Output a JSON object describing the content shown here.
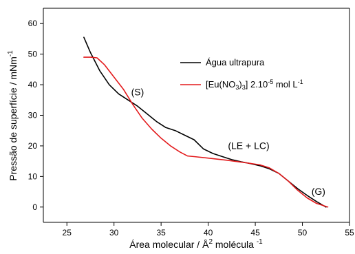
{
  "chart_data": {
    "type": "line",
    "xlabel": "Área molecular / Å² molécula ⁻¹",
    "ylabel": "Pressão de superfície / mNm⁻¹",
    "xlim": [
      22.5,
      55
    ],
    "ylim": [
      -5,
      65
    ],
    "xticks": [
      25,
      30,
      35,
      40,
      45,
      50,
      55
    ],
    "yticks": [
      0,
      10,
      20,
      30,
      40,
      50,
      60
    ],
    "grid": false,
    "legend_position": "top-right",
    "series": [
      {
        "name": "Água ultrapura",
        "color": "#000000",
        "x": [
          26.8,
          27.5,
          28.5,
          29.5,
          30.5,
          31.5,
          32.5,
          33.5,
          34.5,
          35.5,
          36.5,
          37.5,
          38.5,
          39.5,
          40.5,
          41.5,
          42.5,
          43.5,
          44.5,
          45.5,
          46.5,
          47.5,
          48.5,
          49.5,
          50.5,
          51.5,
          52.5
        ],
        "y": [
          55.5,
          50.5,
          44.5,
          40.0,
          37.0,
          35.0,
          33.0,
          30.5,
          28.0,
          26.0,
          25.0,
          23.5,
          22.0,
          19.0,
          17.5,
          16.5,
          15.5,
          14.8,
          14.2,
          13.5,
          12.5,
          11.0,
          8.5,
          6.0,
          3.8,
          1.8,
          0.0
        ]
      },
      {
        "name": "[Eu(NO₃)₃] 2.10⁻⁵ mol L⁻¹",
        "color": "#e31a1c",
        "x": [
          26.8,
          27.5,
          28.2,
          29.0,
          30.0,
          31.0,
          32.0,
          33.0,
          34.0,
          35.0,
          36.0,
          37.0,
          37.8,
          38.5,
          40.0,
          42.0,
          44.0,
          45.5,
          46.5,
          47.5,
          48.5,
          49.5,
          50.5,
          51.5,
          52.7
        ],
        "y": [
          49.0,
          49.0,
          48.8,
          46.5,
          42.5,
          38.5,
          33.5,
          29.0,
          25.5,
          22.5,
          20.0,
          18.0,
          16.7,
          16.5,
          16.0,
          15.3,
          14.5,
          13.8,
          12.8,
          11.0,
          8.5,
          5.5,
          3.0,
          1.2,
          0.0
        ]
      }
    ],
    "annotations": [
      {
        "text": "(S)",
        "x": 32.5,
        "y": 36.5
      },
      {
        "text": "(LE + LC)",
        "x": 44.3,
        "y": 19.0
      },
      {
        "text": "(G)",
        "x": 51.7,
        "y": 4.0
      }
    ]
  },
  "legend": {
    "item1": {
      "label": "Água ultrapura",
      "color": "#000000"
    },
    "item2": {
      "label_parts": [
        "[Eu(NO",
        "3",
        ")",
        "3",
        "] 2.10",
        "-5",
        " mol L",
        "-1"
      ],
      "color": "#e31a1c"
    }
  },
  "axis_titles": {
    "x_parts": [
      "Área molecular / Å",
      "2",
      " molécula ",
      "-1"
    ],
    "y_parts": [
      "Pressão de superfície / mNm",
      "-1"
    ]
  }
}
